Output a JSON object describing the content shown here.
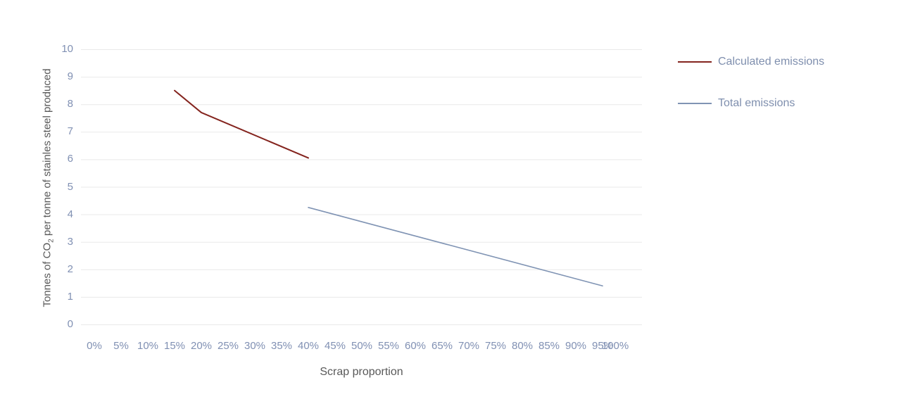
{
  "chart_data": {
    "type": "line",
    "xlabel": "Scrap proportion",
    "ylabel": "Tonnes of CO₂ per tonne of stainles steel produced",
    "xlim": [
      0,
      100
    ],
    "ylim": [
      0,
      10
    ],
    "x_ticks": [
      "0%",
      "5%",
      "10%",
      "15%",
      "20%",
      "25%",
      "30%",
      "35%",
      "40%",
      "45%",
      "50%",
      "55%",
      "60%",
      "65%",
      "70%",
      "75%",
      "80%",
      "85%",
      "90%",
      "95%",
      "100%"
    ],
    "y_ticks": [
      0,
      1,
      2,
      3,
      4,
      5,
      6,
      7,
      8,
      9,
      10
    ],
    "grid": "horizontal",
    "gridline_color": "#e9e9e9",
    "legend_position": "right",
    "series": [
      {
        "name": "Calculated emissions",
        "color": "#84241e",
        "stroke_width": 2,
        "points": [
          {
            "x": 15,
            "y": 8.5
          },
          {
            "x": 20,
            "y": 7.7
          },
          {
            "x": 40,
            "y": 6.05
          }
        ]
      },
      {
        "name": "Total emissions",
        "color": "#8094b4",
        "stroke_width": 1.6,
        "points": [
          {
            "x": 40,
            "y": 4.25
          },
          {
            "x": 95,
            "y": 1.4
          }
        ]
      }
    ]
  },
  "axes": {
    "x_title": "Scrap proportion",
    "y_title_prefix": "Tonnes of CO",
    "y_title_sub": "2",
    "y_title_suffix": " per tonne of stainles steel produced"
  },
  "colors": {
    "tick_label": "#8090b3",
    "axis_title": "#595959",
    "legend_label": "#7f8fae",
    "background": "#ffffff"
  }
}
